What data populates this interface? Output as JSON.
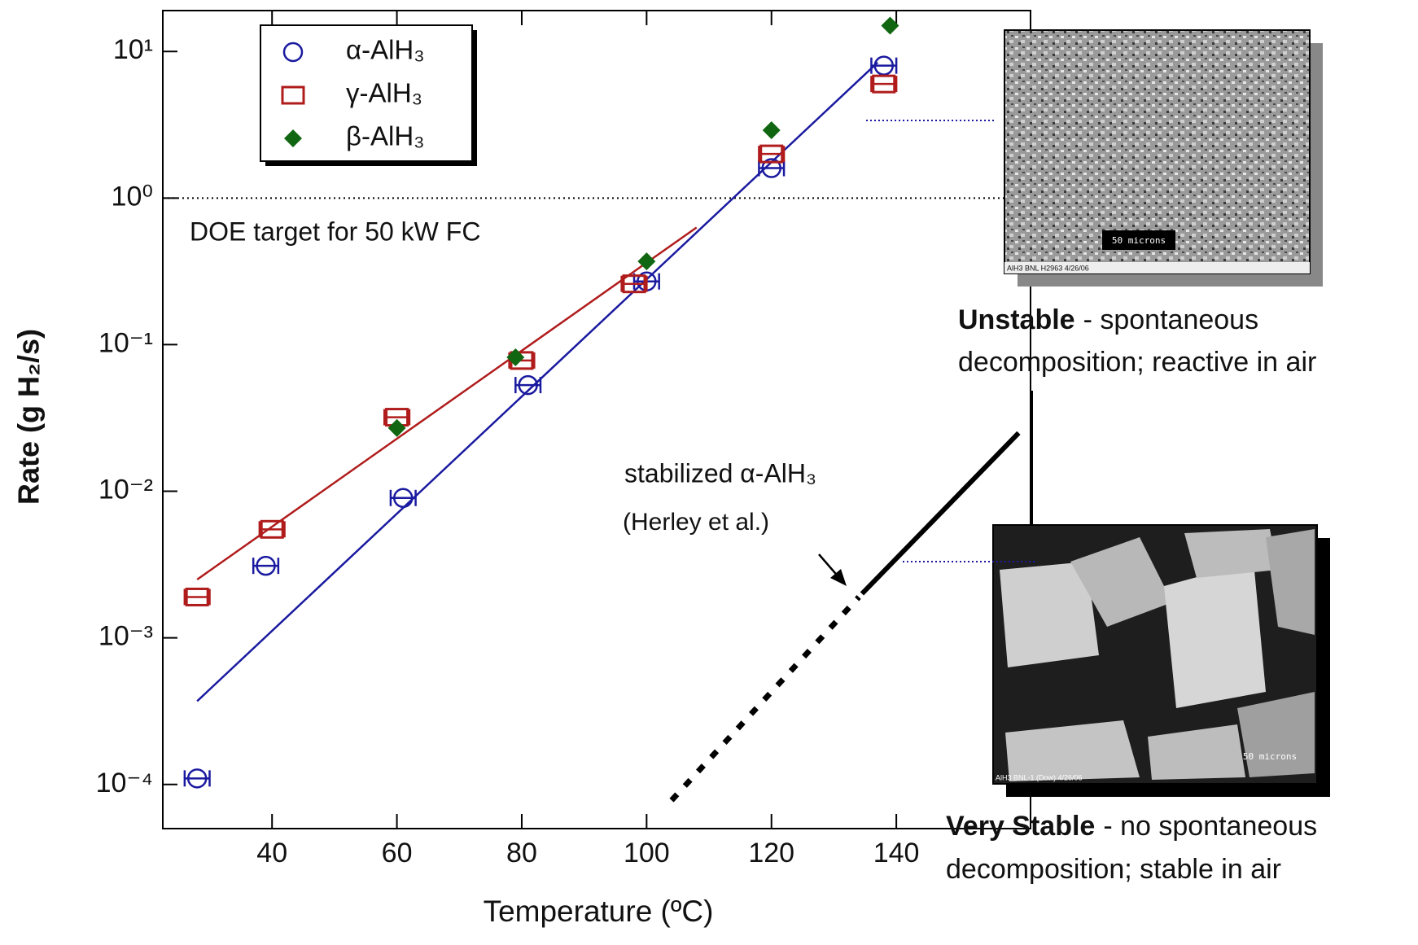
{
  "chart_data": {
    "type": "scatter",
    "log_y": true,
    "xlabel": "Temperature (ºC)",
    "ylabel": "Rate (g H₂/s)",
    "xlim": [
      22.5,
      161.5
    ],
    "xticks": [
      40,
      60,
      80,
      100,
      120,
      140
    ],
    "ylim": [
      5e-05,
      19
    ],
    "yticks": [
      {
        "value": 0.0001,
        "label": "10⁻⁴"
      },
      {
        "value": 0.001,
        "label": "10⁻³"
      },
      {
        "value": 0.01,
        "label": "10⁻²"
      },
      {
        "value": 0.1,
        "label": "10⁻¹"
      },
      {
        "value": 1,
        "label": "10⁰"
      },
      {
        "value": 10,
        "label": "10¹"
      }
    ],
    "legend": "upper left",
    "series": [
      {
        "name": "α-AlH₃",
        "color": "#1a1aa0",
        "marker": "circle",
        "xerr": 2,
        "x": [
          28,
          39,
          61,
          81,
          100,
          120,
          138
        ],
        "values": [
          0.00011,
          0.0031,
          0.009,
          0.053,
          0.27,
          1.6,
          8
        ],
        "fit": {
          "x": [
            28,
            137
          ],
          "values": [
            0.00037,
            8.4
          ]
        }
      },
      {
        "name": "γ-AlH₃",
        "color": "#b01c1c",
        "marker": "square",
        "xerr": 2,
        "x": [
          28,
          40,
          60,
          80,
          98,
          120,
          138
        ],
        "values": [
          0.0019,
          0.0055,
          0.032,
          0.078,
          0.26,
          2.0,
          6
        ],
        "fit": {
          "x": [
            28,
            108
          ],
          "values": [
            0.0025,
            0.63
          ]
        }
      },
      {
        "name": "β-AlH₃",
        "color": "#116611",
        "marker": "diamond",
        "x": [
          60,
          79,
          100,
          120,
          139
        ],
        "values": [
          0.027,
          0.082,
          0.37,
          2.9,
          15
        ]
      }
    ],
    "hline": {
      "value": 1,
      "label": "DOE target for 50 kW FC"
    },
    "reference": {
      "label": "stabilized α-AlH₃",
      "note": "(Herley et al.)",
      "segments": [
        {
          "style": "dashed",
          "x": [
            104,
            134
          ],
          "values": [
            7.8e-05,
            0.0019
          ]
        },
        {
          "style": "solid",
          "x": [
            134.5,
            159.6
          ],
          "values": [
            0.002,
            0.025
          ]
        }
      ]
    }
  },
  "images": [
    {
      "title": "Unstable",
      "lines": [
        "- spontaneous",
        "decomposition; reactive in air"
      ],
      "scale": "50 microns",
      "caption": "AlH3 BNL H2963 4/26/06"
    },
    {
      "title": "Very Stable",
      "lines": [
        "- no spontaneous",
        "decomposition; stable in air"
      ],
      "scale": "50 microns",
      "caption": "AlH3 BNL-1 (Dow) 4/26/06"
    }
  ]
}
